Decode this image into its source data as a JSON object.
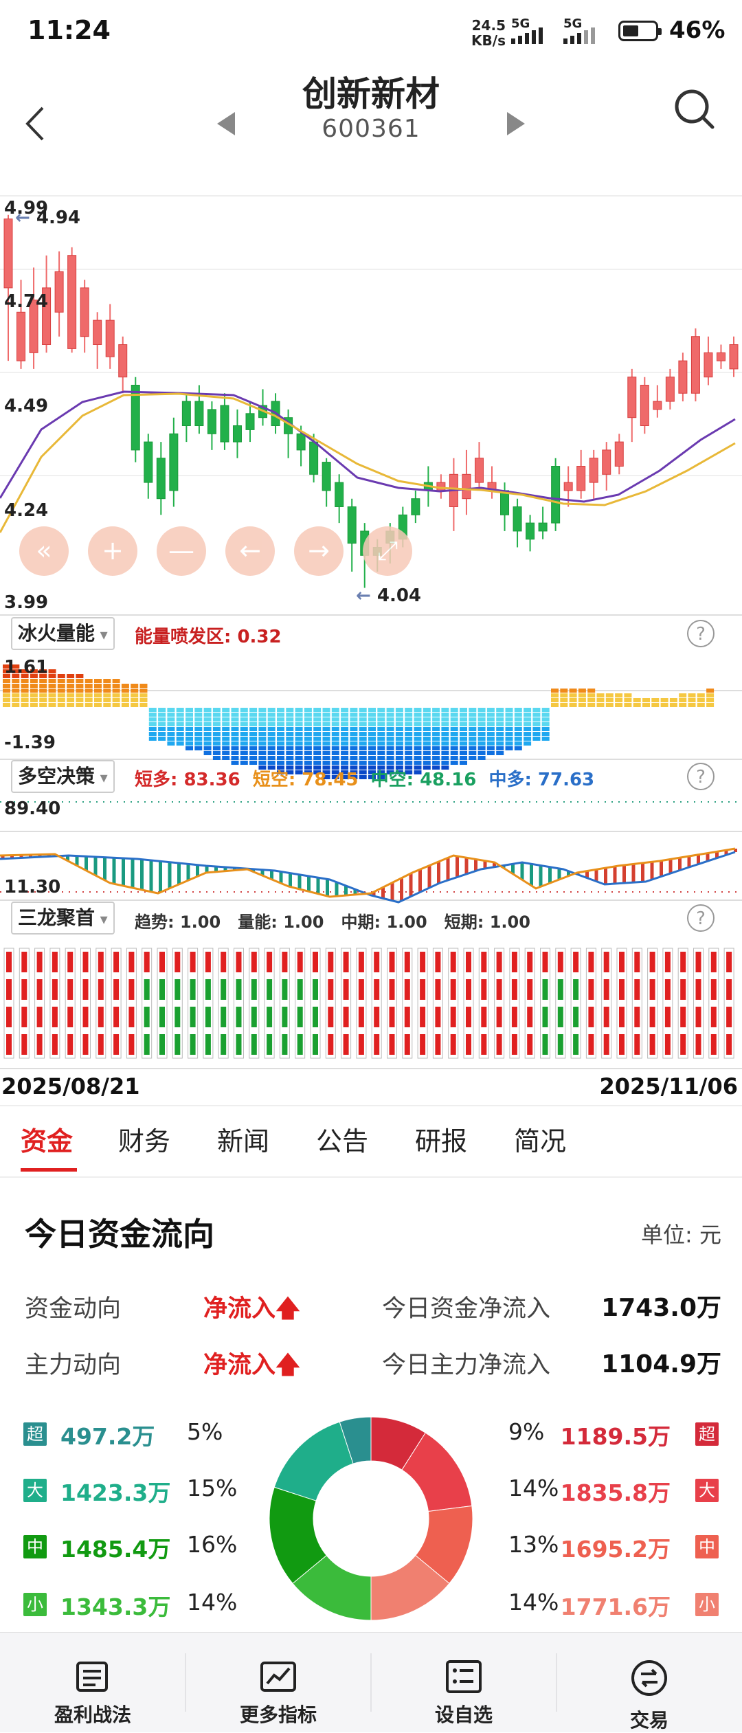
{
  "status": {
    "time": "11:24",
    "net_speed_top": "24.5",
    "net_speed_bottom": "KB/s",
    "sig1": "5G",
    "sig2": "5G",
    "battery": "46%"
  },
  "header": {
    "stock_name": "创新新材",
    "stock_code": "600361"
  },
  "kline": {
    "ymax": "4.99",
    "y2": "4.74",
    "y3": "4.49",
    "y4": "4.24",
    "ymin": "3.99",
    "high_mark": "4.94",
    "low_mark": "4.04",
    "nav_buttons": [
      "«",
      "+",
      "—",
      "←",
      "→",
      "⤢"
    ]
  },
  "ind1": {
    "name": "冰火量能",
    "label": "能量喷发区: 0.32",
    "ymax": "1.61",
    "ymin": "-1.39"
  },
  "ind2": {
    "name": "多空决策",
    "ymax": "89.40",
    "ymin": "11.30",
    "values": [
      {
        "text": "短多: 83.36",
        "color": "#d42a2a"
      },
      {
        "text": "短空: 78.45",
        "color": "#e8901a"
      },
      {
        "text": "中空: 48.16",
        "color": "#1aa060"
      },
      {
        "text": "中多: 77.63",
        "color": "#2a6fc8"
      }
    ]
  },
  "ind3": {
    "name": "三龙聚首",
    "values": [
      "趋势: 1.00",
      "量能: 1.00",
      "中期: 1.00",
      "短期: 1.00"
    ]
  },
  "dates": {
    "start": "2025/08/21",
    "end": "2025/11/06"
  },
  "tabs": [
    "资金",
    "财务",
    "新闻",
    "公告",
    "研报",
    "简况"
  ],
  "funds": {
    "title": "今日资金流向",
    "unit": "单位: 元",
    "row1_label": "资金动向",
    "row1_status": "净流入",
    "row1_name": "今日资金净流入",
    "row1_value": "1743.0万",
    "row2_label": "主力动向",
    "row2_status": "净流入",
    "row2_name": "今日主力净流入",
    "row2_value": "1104.9万",
    "outflow": [
      {
        "tag": "超",
        "amount": "497.2万",
        "pct": "5%",
        "color": "#2a8f8f"
      },
      {
        "tag": "大",
        "amount": "1423.3万",
        "pct": "15%",
        "color": "#1fae8a"
      },
      {
        "tag": "中",
        "amount": "1485.4万",
        "pct": "16%",
        "color": "#119a11"
      },
      {
        "tag": "小",
        "amount": "1343.3万",
        "pct": "14%",
        "color": "#3bbb3b"
      }
    ],
    "inflow": [
      {
        "tag": "超",
        "amount": "1189.5万",
        "pct": "9%",
        "color": "#d42a3a"
      },
      {
        "tag": "大",
        "amount": "1835.8万",
        "pct": "14%",
        "color": "#e8404a"
      },
      {
        "tag": "中",
        "amount": "1695.2万",
        "pct": "13%",
        "color": "#ee6050"
      },
      {
        "tag": "小",
        "amount": "1771.6万",
        "pct": "14%",
        "color": "#f08070"
      }
    ]
  },
  "bottom_nav": [
    "盈利战法",
    "更多指标",
    "设自选",
    "交易"
  ]
}
